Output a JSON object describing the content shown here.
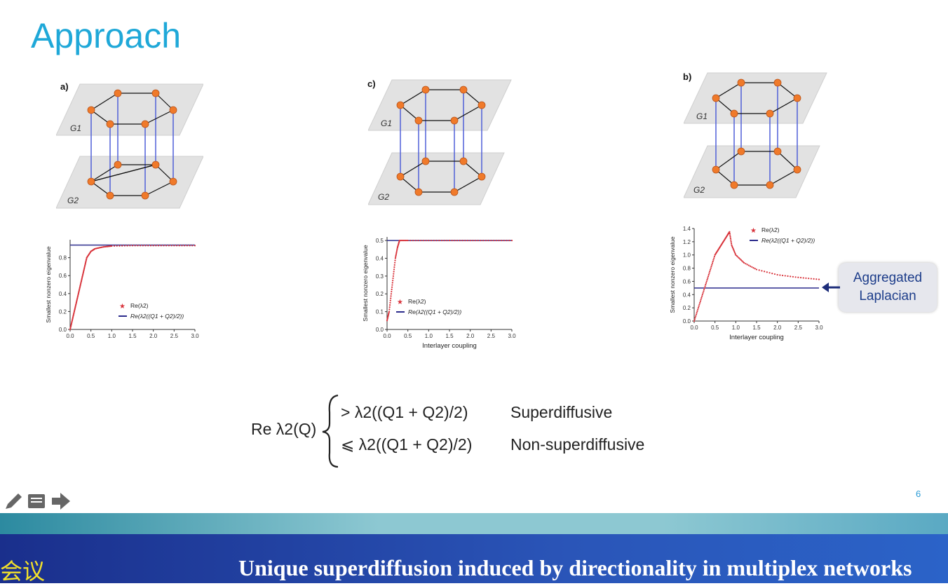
{
  "slide": {
    "title": "Approach",
    "slide_number": "6",
    "panel_labels": {
      "a": "a)",
      "c": "c)",
      "b": "b)"
    },
    "layer_labels": {
      "top": "G1",
      "bottom": "G2"
    },
    "callout": {
      "line1": "Aggregated",
      "line2": "Laplacian"
    },
    "formula": {
      "lhs": "Re λ2(Q)",
      "case1": "> λ2((Q1 + Q2)/2)",
      "case1_label": "Superdiffusive",
      "case2": "⩽ λ2((Q1 + Q2)/2)",
      "case2_label": "Non-superdiffusive"
    }
  },
  "toolbar": {
    "icons": [
      "pencil-icon",
      "notes-icon",
      "next-arrow-icon"
    ]
  },
  "banner": {
    "left_text": "会议",
    "text": "Unique superdiffusion induced by directionality in multiplex networks"
  },
  "colors": {
    "title": "#1fa8d8",
    "node": "#f07a2a",
    "coupling": "#4f5fd8",
    "series_star": "#d8323a",
    "series_line": "#2b2b8c"
  },
  "chart_data": [
    {
      "type": "scatter",
      "panel": "a",
      "ylabel": "Smallest nonzero eigenvalue",
      "xlabel": "",
      "xlim": [
        0,
        3.0
      ],
      "ylim": [
        0,
        1.0
      ],
      "xticks": [
        "0.0",
        "0.5",
        "1.0",
        "1.5",
        "2.0",
        "2.5",
        "3.0"
      ],
      "yticks": [
        "0.0",
        "0.2",
        "0.4",
        "0.6",
        "0.8"
      ],
      "legend": [
        "Re(λ2)",
        "Re(λ2((Q1 + Q2)/2))"
      ],
      "series": [
        {
          "name": "Re(λ2)",
          "x": [
            0.0,
            0.05,
            0.1,
            0.15,
            0.2,
            0.25,
            0.3,
            0.35,
            0.4,
            0.5,
            0.6,
            0.8,
            1.0,
            1.5,
            2.0,
            2.5,
            3.0
          ],
          "y": [
            0.0,
            0.1,
            0.2,
            0.3,
            0.4,
            0.5,
            0.6,
            0.7,
            0.8,
            0.87,
            0.9,
            0.92,
            0.93,
            0.935,
            0.935,
            0.935,
            0.935
          ]
        },
        {
          "name": "Re(λ2((Q1 + Q2)/2))",
          "x": [
            0.0,
            3.0
          ],
          "y": [
            0.94,
            0.94
          ]
        }
      ]
    },
    {
      "type": "scatter",
      "panel": "c",
      "ylabel": "Smallest nonzero eigenvalue",
      "xlabel": "Interlayer coupling",
      "xlim": [
        0,
        3.0
      ],
      "ylim": [
        0,
        0.52
      ],
      "xticks": [
        "0.0",
        "0.5",
        "1.0",
        "1.5",
        "2.0",
        "2.5",
        "3.0"
      ],
      "yticks": [
        "0.0",
        "0.1",
        "0.2",
        "0.3",
        "0.4",
        "0.5"
      ],
      "legend": [
        "Re(λ2)",
        "Re(λ2((Q1 + Q2)/2))"
      ],
      "series": [
        {
          "name": "Re(λ2)",
          "x": [
            0.0,
            0.05,
            0.1,
            0.15,
            0.2,
            0.25,
            0.3,
            0.5,
            1.0,
            1.5,
            2.0,
            2.5,
            3.0
          ],
          "y": [
            0.05,
            0.1,
            0.2,
            0.3,
            0.4,
            0.46,
            0.5,
            0.5,
            0.5,
            0.5,
            0.5,
            0.5,
            0.5
          ]
        },
        {
          "name": "Re(λ2((Q1 + Q2)/2))",
          "x": [
            0.0,
            3.0
          ],
          "y": [
            0.5,
            0.5
          ]
        }
      ]
    },
    {
      "type": "scatter",
      "panel": "b",
      "ylabel": "Smallest nonzero eigenvalue",
      "xlabel": "Interlayer coupling",
      "xlim": [
        0,
        3.0
      ],
      "ylim": [
        0,
        1.4
      ],
      "xticks": [
        "0.0",
        "0.5",
        "1.0",
        "1.5",
        "2.0",
        "2.5",
        "3.0"
      ],
      "yticks": [
        "0.0",
        "0.2",
        "0.4",
        "0.6",
        "0.8",
        "1.0",
        "1.2",
        "1.4"
      ],
      "legend": [
        "Re(λ2)",
        "Re(λ2((Q1 + Q2)/2))"
      ],
      "series": [
        {
          "name": "Re(λ2)",
          "x": [
            0.0,
            0.1,
            0.2,
            0.3,
            0.4,
            0.5,
            0.6,
            0.7,
            0.8,
            0.85,
            0.9,
            1.0,
            1.2,
            1.5,
            2.0,
            2.5,
            3.0
          ],
          "y": [
            0.0,
            0.2,
            0.4,
            0.6,
            0.8,
            1.0,
            1.1,
            1.2,
            1.3,
            1.35,
            1.15,
            1.0,
            0.88,
            0.78,
            0.7,
            0.66,
            0.63
          ]
        },
        {
          "name": "Re(λ2((Q1 + Q2)/2))",
          "x": [
            0.0,
            3.0
          ],
          "y": [
            0.5,
            0.5
          ]
        }
      ]
    }
  ]
}
